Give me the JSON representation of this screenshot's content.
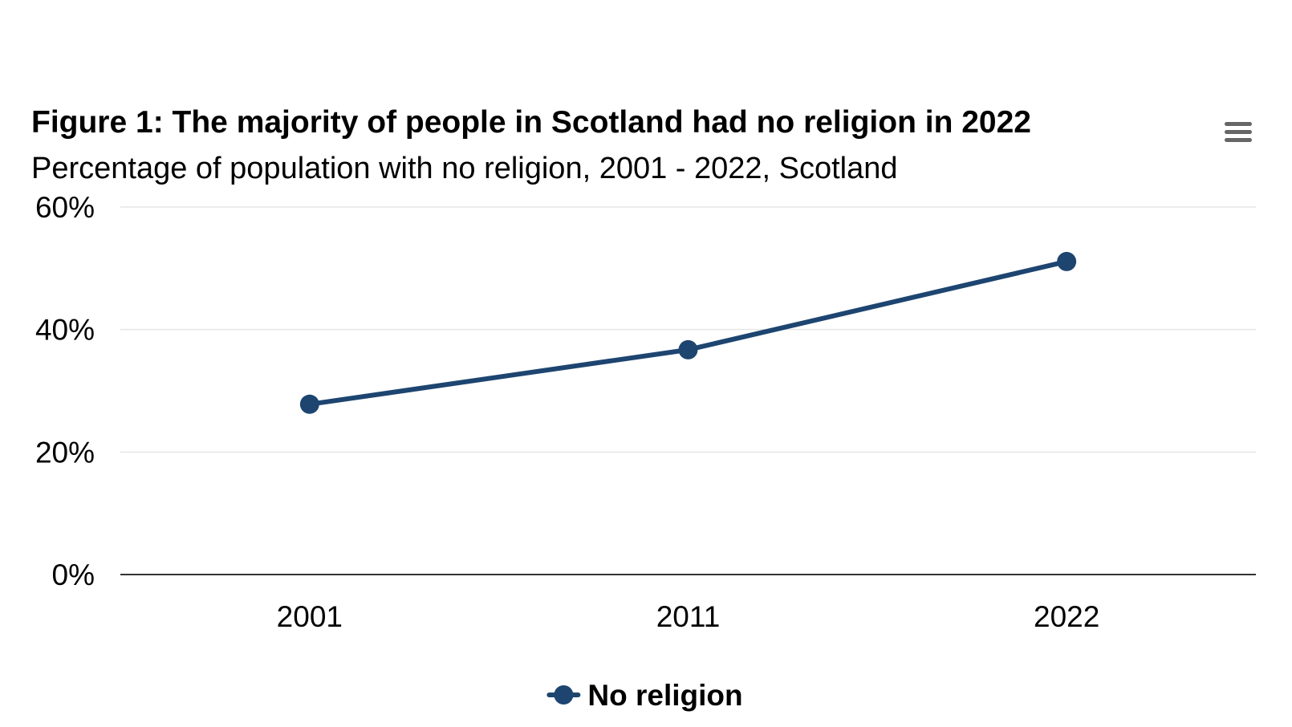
{
  "chart_data": {
    "type": "line",
    "title": "Figure 1: The majority of people in Scotland had no religion in 2022",
    "subtitle": "Percentage of population with no religion, 2001 - 2022, Scotland",
    "xlabel": "",
    "ylabel": "",
    "categories": [
      "2001",
      "2011",
      "2022"
    ],
    "series": [
      {
        "name": "No religion",
        "values": [
          27.8,
          36.7,
          51.1
        ],
        "color": "#1d4570"
      }
    ],
    "ylim": [
      0,
      60
    ],
    "y_ticks": [
      0,
      20,
      40,
      60
    ],
    "y_tick_labels": [
      "0%",
      "20%",
      "40%",
      "60%"
    ],
    "grid": true,
    "legend_position": "bottom-center"
  },
  "menu": {
    "icon": "hamburger-menu-icon"
  }
}
